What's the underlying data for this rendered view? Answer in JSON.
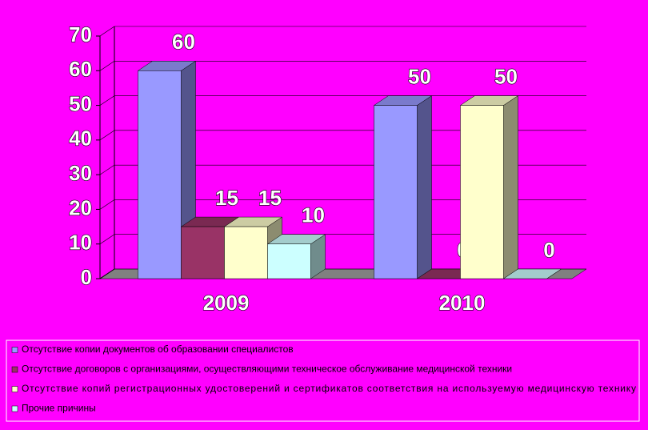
{
  "chart_data": {
    "type": "bar3d",
    "categories": [
      "2009",
      "2010"
    ],
    "series": [
      {
        "name": "Отсутствие копии документов об образовании специалистов",
        "color": "#9999ff",
        "values": [
          60,
          50
        ]
      },
      {
        "name": "Отсутствие договоров с организациями, осуществляющими техническое обслуживание медицинской техники",
        "color": "#993366",
        "values": [
          15,
          0
        ]
      },
      {
        "name": "Отсутствие копий регистрационных удостоверений и сертификатов соответствия на используемую медицинскую технику",
        "color": "#ffffcc",
        "values": [
          15,
          50
        ]
      },
      {
        "name": "Прочие причины",
        "color": "#ccffff",
        "values": [
          10,
          0
        ]
      }
    ],
    "ylim": [
      0,
      70
    ],
    "yticks": [
      0,
      10,
      20,
      30,
      40,
      50,
      60,
      70
    ],
    "grid": true,
    "legend": "bottom",
    "background": "#ff00ff"
  }
}
